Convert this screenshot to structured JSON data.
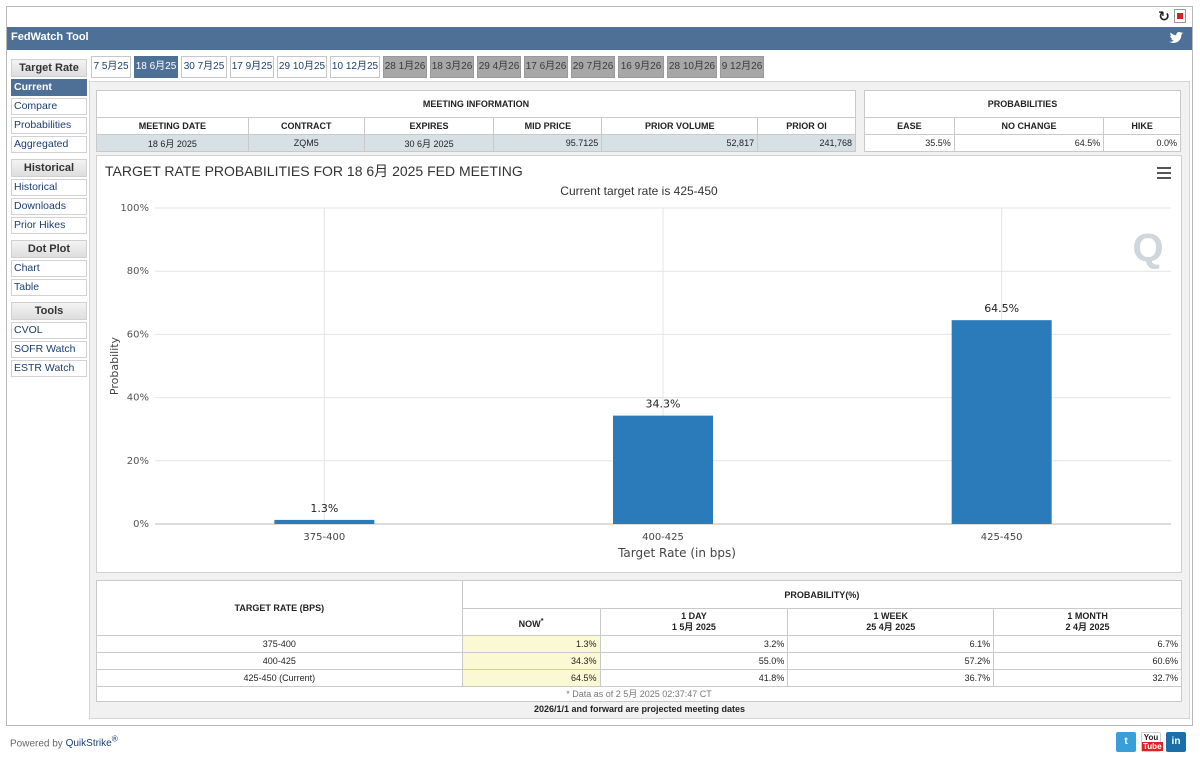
{
  "app": {
    "title": "FedWatch Tool",
    "powered_by": "Powered by",
    "brand": "QuikStrike",
    "reg": "®"
  },
  "sidebar": {
    "groups": [
      {
        "title": "Target Rate",
        "items": [
          "Current",
          "Compare",
          "Probabilities",
          "Aggregated"
        ]
      },
      {
        "title": "Historical",
        "items": [
          "Historical",
          "Downloads",
          "Prior Hikes"
        ]
      },
      {
        "title": "Dot Plot",
        "items": [
          "Chart",
          "Table"
        ]
      },
      {
        "title": "Tools",
        "items": [
          "CVOL",
          "SOFR Watch",
          "ESTR Watch"
        ]
      }
    ],
    "active": "Current"
  },
  "tabs": [
    "7 5月25",
    "18 6月25",
    "30 7月25",
    "17 9月25",
    "29 10月25",
    "10 12月25",
    "28 1月26",
    "18 3月26",
    "29 4月26",
    "17 6月26",
    "29 7月26",
    "16 9月26",
    "28 10月26",
    "9 12月26"
  ],
  "meeting": {
    "section_title": "MEETING INFORMATION",
    "headers": [
      "MEETING DATE",
      "CONTRACT",
      "EXPIRES",
      "MID PRICE",
      "PRIOR VOLUME",
      "PRIOR OI"
    ],
    "values": [
      "18 6月 2025",
      "ZQM5",
      "30 6月 2025",
      "95.7125",
      "52,817",
      "241,768"
    ]
  },
  "probabilities": {
    "section_title": "PROBABILITIES",
    "headers": [
      "EASE",
      "NO CHANGE",
      "HIKE"
    ],
    "values": [
      "35.5%",
      "64.5%",
      "0.0%"
    ]
  },
  "chart": {
    "title": "TARGET RATE PROBABILITIES FOR 18 6月 2025 FED MEETING",
    "subtitle": "Current target rate is 425-450",
    "watermark": "Q"
  },
  "chart_data": {
    "type": "bar",
    "categories": [
      "375-400",
      "400-425",
      "425-450"
    ],
    "values": [
      1.3,
      34.3,
      64.5
    ],
    "data_labels": [
      "1.3%",
      "34.3%",
      "64.5%"
    ],
    "xlabel": "Target Rate (in bps)",
    "ylabel": "Probability",
    "ylim": [
      0,
      100
    ],
    "yticks": [
      "0%",
      "20%",
      "40%",
      "60%",
      "80%",
      "100%"
    ],
    "grid": true,
    "bar_color": "#2b7bba"
  },
  "rates_table": {
    "col_header": "TARGET RATE (BPS)",
    "group_header": "PROBABILITY(%)",
    "sub_headers": [
      {
        "line1": "NOW",
        "line2": "",
        "mark": "*"
      },
      {
        "line1": "1 DAY",
        "line2": "1 5月 2025"
      },
      {
        "line1": "1 WEEK",
        "line2": "25 4月 2025"
      },
      {
        "line1": "1 MONTH",
        "line2": "2 4月 2025"
      }
    ],
    "rows": [
      {
        "rate": "375-400",
        "now": "1.3%",
        "day": "3.2%",
        "week": "6.1%",
        "month": "6.7%"
      },
      {
        "rate": "400-425",
        "now": "34.3%",
        "day": "55.0%",
        "week": "57.2%",
        "month": "60.6%"
      },
      {
        "rate": "425-450 (Current)",
        "now": "64.5%",
        "day": "41.8%",
        "week": "36.7%",
        "month": "32.7%"
      }
    ],
    "footnote": "* Data as of 2 5月 2025 02:37:47 CT",
    "projected_note": "2026/1/1 and forward are projected meeting dates"
  },
  "social": {
    "youtube_top": "You",
    "youtube_bottom": "Tube",
    "linkedin": "in"
  }
}
